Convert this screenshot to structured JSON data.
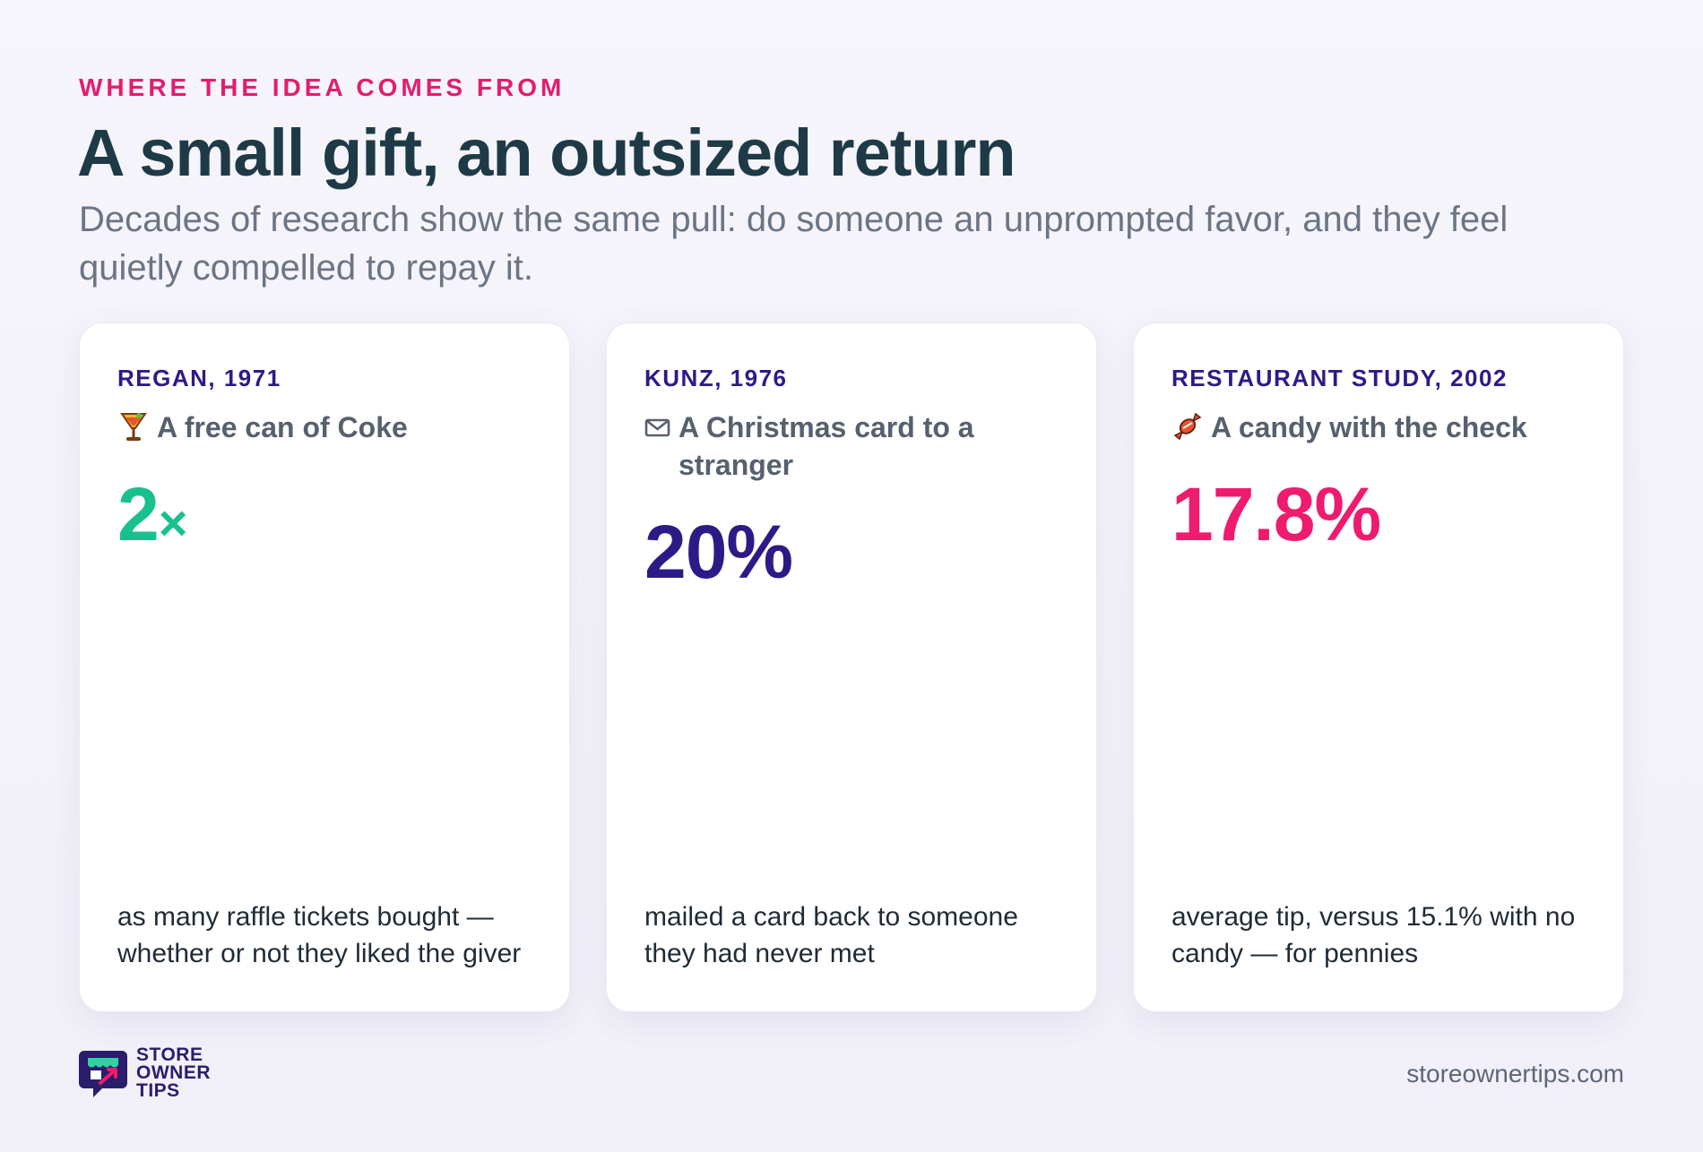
{
  "header": {
    "eyebrow": "WHERE THE IDEA COMES FROM",
    "title": "A small gift, an outsized return",
    "subtitle": "Decades of research show the same pull: do someone an unprompted favor, and they feel quietly compelled to repay it."
  },
  "cards": [
    {
      "study": "REGAN, 1971",
      "gift_icon": "soda-cup-icon",
      "gift": "A free can of Coke",
      "stat": "2",
      "stat_suffix": "×",
      "stat_color": "#18c08f",
      "description": "as many raffle tickets bought — whether or not they liked the giver"
    },
    {
      "study": "KUNZ, 1976",
      "gift_icon": "envelope-icon",
      "gift": "A Christmas card to a stranger",
      "stat": "20%",
      "stat_suffix": "",
      "stat_color": "#2e1a87",
      "description": "mailed a card back to someone they had never met"
    },
    {
      "study": "RESTAURANT STUDY, 2002",
      "gift_icon": "candy-icon",
      "gift": "A candy with the check",
      "stat": "17.8%",
      "stat_suffix": "",
      "stat_color": "#ee1b6e",
      "description": "average tip, versus 15.1% with no candy — for pennies"
    }
  ],
  "footer": {
    "brand_line1": "STORE",
    "brand_line2": "OWNER",
    "brand_line3": "TIPS",
    "url": "storeownertips.com"
  }
}
